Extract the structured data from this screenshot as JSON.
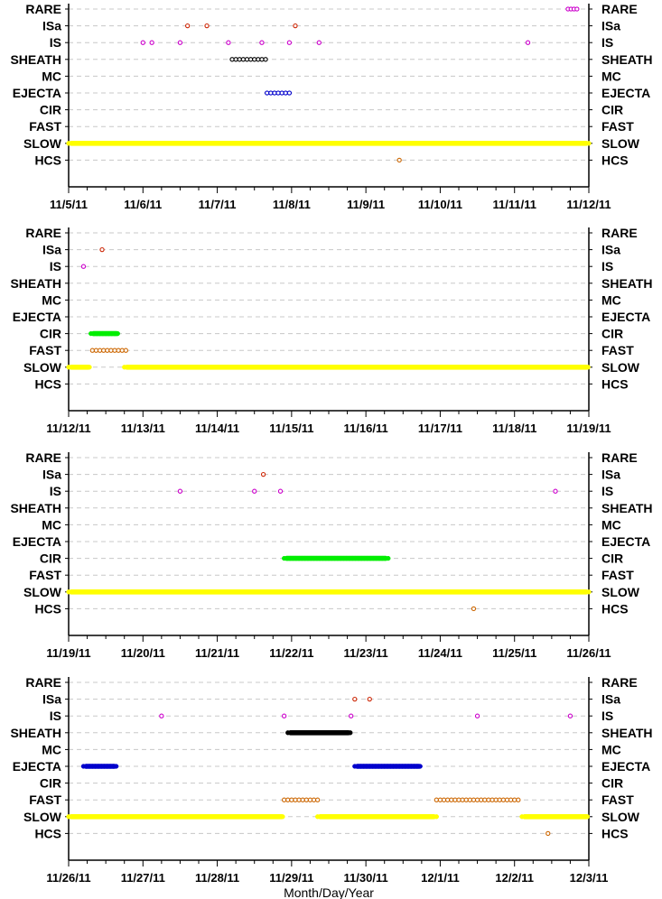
{
  "chart_data": [
    {
      "type": "scatter",
      "categories": [
        "RARE",
        "ISa",
        "IS",
        "SHEATH",
        "MC",
        "EJECTA",
        "CIR",
        "FAST",
        "SLOW",
        "HCS"
      ],
      "xlim": [
        "2011-11-05",
        "2011-11-12"
      ],
      "xticks": [
        "11/5/11",
        "11/6/11",
        "11/7/11",
        "11/8/11",
        "11/9/11",
        "11/10/11",
        "11/11/11",
        "11/12/11"
      ],
      "series": [
        {
          "category": "RARE",
          "color": "#cc00cc",
          "style": "open",
          "points": [
            6.72,
            6.76,
            6.8,
            6.84
          ]
        },
        {
          "category": "ISa",
          "color": "#cc2200",
          "style": "open",
          "points": [
            1.6,
            1.86,
            3.05
          ]
        },
        {
          "category": "IS",
          "color": "#cc00cc",
          "style": "open",
          "points": [
            1.0,
            1.12,
            1.5,
            2.15,
            2.6,
            2.97,
            3.37,
            6.18
          ]
        },
        {
          "category": "SHEATH",
          "color": "#000000",
          "style": "open",
          "points": [
            2.2,
            2.25,
            2.3,
            2.35,
            2.4,
            2.45,
            2.5,
            2.55,
            2.6,
            2.65
          ]
        },
        {
          "category": "EJECTA",
          "color": "#0000cc",
          "style": "open",
          "points": [
            2.67,
            2.72,
            2.77,
            2.82,
            2.87,
            2.92,
            2.97
          ]
        },
        {
          "category": "HCS",
          "color": "#cc6600",
          "style": "open",
          "points": [
            4.45
          ]
        }
      ],
      "bands": [
        {
          "category": "SLOW",
          "color": "#ffff00",
          "ranges": [
            [
              0,
              7
            ]
          ]
        }
      ]
    },
    {
      "type": "scatter",
      "categories": [
        "RARE",
        "ISa",
        "IS",
        "SHEATH",
        "MC",
        "EJECTA",
        "CIR",
        "FAST",
        "SLOW",
        "HCS"
      ],
      "xlim": [
        "2011-11-12",
        "2011-11-19"
      ],
      "xticks": [
        "11/12/11",
        "11/13/11",
        "11/14/11",
        "11/15/11",
        "11/16/11",
        "11/17/11",
        "11/18/11",
        "11/19/11"
      ],
      "series": [
        {
          "category": "ISa",
          "color": "#cc2200",
          "style": "open",
          "points": [
            0.45
          ]
        },
        {
          "category": "IS",
          "color": "#cc00cc",
          "style": "open",
          "points": [
            0.2
          ]
        },
        {
          "category": "FAST",
          "color": "#cc6600",
          "style": "open",
          "points": [
            0.32,
            0.37,
            0.42,
            0.47,
            0.52,
            0.57,
            0.62,
            0.67,
            0.72,
            0.77
          ]
        }
      ],
      "bands": [
        {
          "category": "CIR",
          "color": "#00ee00",
          "ranges": [
            [
              0.3,
              0.68
            ]
          ]
        },
        {
          "category": "SLOW",
          "color": "#ffff00",
          "ranges": [
            [
              0,
              0.3
            ],
            [
              0.75,
              7
            ]
          ]
        }
      ]
    },
    {
      "type": "scatter",
      "categories": [
        "RARE",
        "ISa",
        "IS",
        "SHEATH",
        "MC",
        "EJECTA",
        "CIR",
        "FAST",
        "SLOW",
        "HCS"
      ],
      "xlim": [
        "2011-11-19",
        "2011-11-26"
      ],
      "xticks": [
        "11/19/11",
        "11/20/11",
        "11/21/11",
        "11/22/11",
        "11/23/11",
        "11/24/11",
        "11/25/11",
        "11/26/11"
      ],
      "series": [
        {
          "category": "ISa",
          "color": "#cc2200",
          "style": "open",
          "points": [
            2.62
          ]
        },
        {
          "category": "IS",
          "color": "#cc00cc",
          "style": "open",
          "points": [
            1.5,
            2.5,
            2.85,
            6.55
          ]
        },
        {
          "category": "HCS",
          "color": "#cc6600",
          "style": "open",
          "points": [
            5.45
          ]
        }
      ],
      "bands": [
        {
          "category": "CIR",
          "color": "#00ee00",
          "ranges": [
            [
              2.9,
              4.3
            ]
          ]
        },
        {
          "category": "SLOW",
          "color": "#ffff00",
          "ranges": [
            [
              0,
              7
            ]
          ]
        }
      ]
    },
    {
      "type": "scatter",
      "categories": [
        "RARE",
        "ISa",
        "IS",
        "SHEATH",
        "MC",
        "EJECTA",
        "CIR",
        "FAST",
        "SLOW",
        "HCS"
      ],
      "xlim": [
        "2011-11-26",
        "2011-12-03"
      ],
      "xticks": [
        "11/26/11",
        "11/27/11",
        "11/28/11",
        "11/29/11",
        "11/30/11",
        "12/1/11",
        "12/2/11",
        "12/3/11"
      ],
      "xlabel": "Month/Day/Year",
      "series": [
        {
          "category": "ISa",
          "color": "#cc2200",
          "style": "open",
          "points": [
            3.85,
            4.05
          ]
        },
        {
          "category": "IS",
          "color": "#cc00cc",
          "style": "open",
          "points": [
            1.25,
            2.9,
            3.8,
            5.5,
            6.75
          ]
        },
        {
          "category": "FAST",
          "color": "#cc6600",
          "style": "open",
          "points": [
            2.9,
            2.95,
            3.0,
            3.05,
            3.1,
            3.15,
            3.2,
            3.25,
            3.3,
            3.35,
            4.95,
            5.0,
            5.05,
            5.1,
            5.15,
            5.2,
            5.25,
            5.3,
            5.35,
            5.4,
            5.45,
            5.5,
            5.55,
            5.6,
            5.65,
            5.7,
            5.75,
            5.8,
            5.85,
            5.9,
            5.95,
            6.0,
            6.05
          ]
        },
        {
          "category": "HCS",
          "color": "#cc6600",
          "style": "open",
          "points": [
            6.45
          ]
        }
      ],
      "bands": [
        {
          "category": "SHEATH",
          "color": "#000000",
          "ranges": [
            [
              2.95,
              3.8
            ]
          ]
        },
        {
          "category": "EJECTA",
          "color": "#0000cc",
          "ranges": [
            [
              0.2,
              0.65
            ],
            [
              3.85,
              4.75
            ]
          ]
        },
        {
          "category": "SLOW",
          "color": "#ffff00",
          "ranges": [
            [
              0,
              2.9
            ],
            [
              3.35,
              4.95
            ],
            [
              6.1,
              7
            ]
          ]
        }
      ]
    }
  ]
}
